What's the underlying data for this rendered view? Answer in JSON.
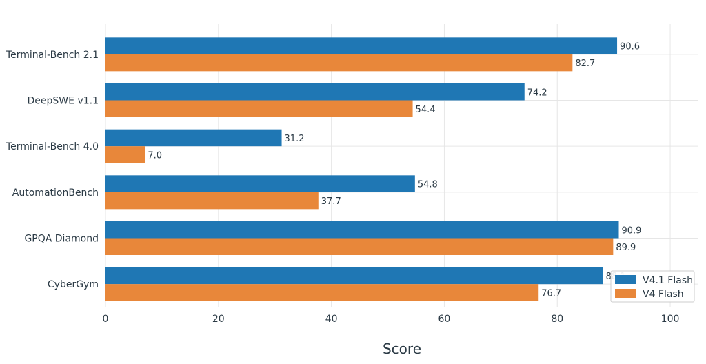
{
  "chart_data": {
    "type": "bar",
    "orientation": "horizontal",
    "categories": [
      "Terminal-Bench 2.1",
      "DeepSWE v1.1",
      "Terminal-Bench 4.0",
      "AutomationBench",
      "GPQA Diamond",
      "CyberGym"
    ],
    "series": [
      {
        "name": "V4.1 Flash",
        "color": "#1f77b4",
        "values": [
          90.6,
          74.2,
          31.2,
          54.8,
          90.9,
          88.1
        ]
      },
      {
        "name": "V4 Flash",
        "color": "#e8873a",
        "values": [
          82.7,
          54.4,
          7.0,
          37.7,
          89.9,
          76.7
        ]
      }
    ],
    "xlabel": "Score",
    "xlim": [
      0,
      105
    ],
    "xticks": [
      0,
      20,
      40,
      60,
      80,
      100
    ],
    "grid": true,
    "legend": "bottom-right",
    "value_labels": true
  }
}
